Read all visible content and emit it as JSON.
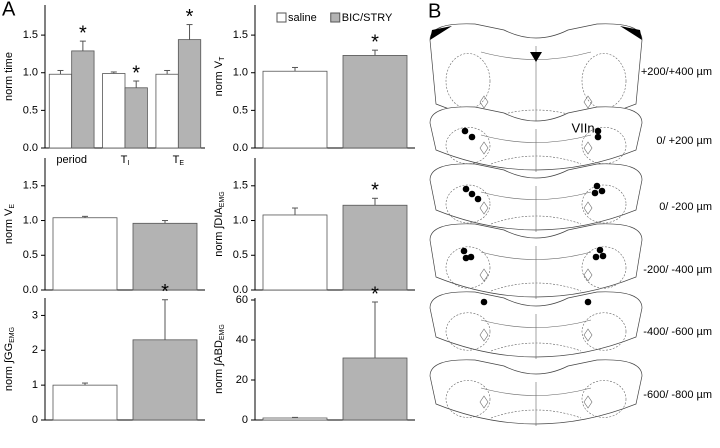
{
  "figure": {
    "panel_a": "A",
    "panel_b": "B",
    "structure_label": "VIIn",
    "section_labels": [
      "+200/+400 µm",
      "0/ +200 µm",
      "0/ -200 µm",
      "-200/ -400 µm",
      "-400/ -600 µm",
      "-600/ -800 µm"
    ]
  },
  "chart_data": [
    {
      "type": "bar",
      "ylabel": "norm time",
      "categories": [
        "period",
        "T",
        "T"
      ],
      "category_subscripts": [
        null,
        "I",
        "E"
      ],
      "ylim": [
        0,
        1.9
      ],
      "yticks": [
        {
          "value": 0,
          "label": "0.0"
        },
        {
          "value": 0.5,
          "label": "0.5"
        },
        {
          "value": 1,
          "label": "1.0"
        },
        {
          "value": 1.5,
          "label": "1.5"
        }
      ],
      "series": [
        {
          "color": "#ffffff",
          "values": [
            0.98,
            0.99,
            0.98
          ],
          "errors": [
            0.05,
            0.02,
            0.05
          ]
        },
        {
          "color": "#b3b3b3",
          "values": [
            1.29,
            0.8,
            1.44
          ],
          "errors": [
            0.13,
            0.09,
            0.2
          ],
          "markers": [
            "*",
            "*",
            "*"
          ]
        }
      ]
    },
    {
      "type": "bar",
      "ylabel": "norm V",
      "ylabel_sub": "T",
      "categories": [
        null
      ],
      "legend": true,
      "ylim": [
        0,
        1.9
      ],
      "yticks": [
        {
          "value": 0,
          "label": "0.0"
        },
        {
          "value": 0.5,
          "label": "0.5"
        },
        {
          "value": 1,
          "label": "1.0"
        },
        {
          "value": 1.5,
          "label": "1.5"
        }
      ],
      "series": [
        {
          "name": "saline",
          "color": "#ffffff",
          "values": [
            1.02
          ],
          "errors": [
            0.05
          ]
        },
        {
          "name": "BIC/STRY",
          "color": "#b3b3b3",
          "values": [
            1.23
          ],
          "errors": [
            0.07
          ],
          "markers": [
            "*"
          ]
        }
      ]
    },
    {
      "type": "bar",
      "ylabel": "norm V",
      "ylabel_sub": "E",
      "categories": [
        null
      ],
      "ylim": [
        0,
        1.9
      ],
      "yticks": [
        {
          "value": 0,
          "label": "0.0"
        },
        {
          "value": 0.5,
          "label": "0.5"
        },
        {
          "value": 1,
          "label": "1.0"
        },
        {
          "value": 1.5,
          "label": "1.5"
        }
      ],
      "series": [
        {
          "color": "#ffffff",
          "values": [
            1.04
          ],
          "errors": [
            0.02
          ]
        },
        {
          "color": "#b3b3b3",
          "values": [
            0.96
          ],
          "errors": [
            0.04
          ]
        }
      ]
    },
    {
      "type": "bar",
      "ylabel": "norm ∫DIA",
      "ylabel_sub": "EMG",
      "categories": [
        null
      ],
      "ylim": [
        0,
        1.9
      ],
      "yticks": [
        {
          "value": 0,
          "label": "0.0"
        },
        {
          "value": 0.5,
          "label": "0.5"
        },
        {
          "value": 1,
          "label": "1.0"
        },
        {
          "value": 1.5,
          "label": "1.5"
        }
      ],
      "series": [
        {
          "color": "#ffffff",
          "values": [
            1.08
          ],
          "errors": [
            0.1
          ]
        },
        {
          "color": "#b3b3b3",
          "values": [
            1.22
          ],
          "errors": [
            0.1
          ],
          "markers": [
            "*"
          ]
        }
      ]
    },
    {
      "type": "bar",
      "ylabel": "norm ∫GG",
      "ylabel_sub": "EMG",
      "categories": [
        null
      ],
      "ylim": [
        0,
        3.5
      ],
      "yticks": [
        0,
        1,
        2,
        3
      ],
      "series": [
        {
          "color": "#ffffff",
          "values": [
            1.0
          ],
          "errors": [
            0.06
          ]
        },
        {
          "color": "#b3b3b3",
          "values": [
            2.3
          ],
          "errors": [
            1.15
          ],
          "markers": [
            "*"
          ]
        }
      ]
    },
    {
      "type": "bar",
      "ylabel": "norm ∫ABD",
      "ylabel_sub": "EMG",
      "categories": [
        null
      ],
      "ylim": [
        0,
        61
      ],
      "yticks": [
        0,
        20,
        40,
        60
      ],
      "series": [
        {
          "color": "#ffffff",
          "values": [
            1
          ],
          "errors": [
            0.3
          ]
        },
        {
          "color": "#b3b3b3",
          "values": [
            31
          ],
          "errors": [
            28
          ],
          "markers": [
            "*"
          ]
        }
      ]
    }
  ]
}
